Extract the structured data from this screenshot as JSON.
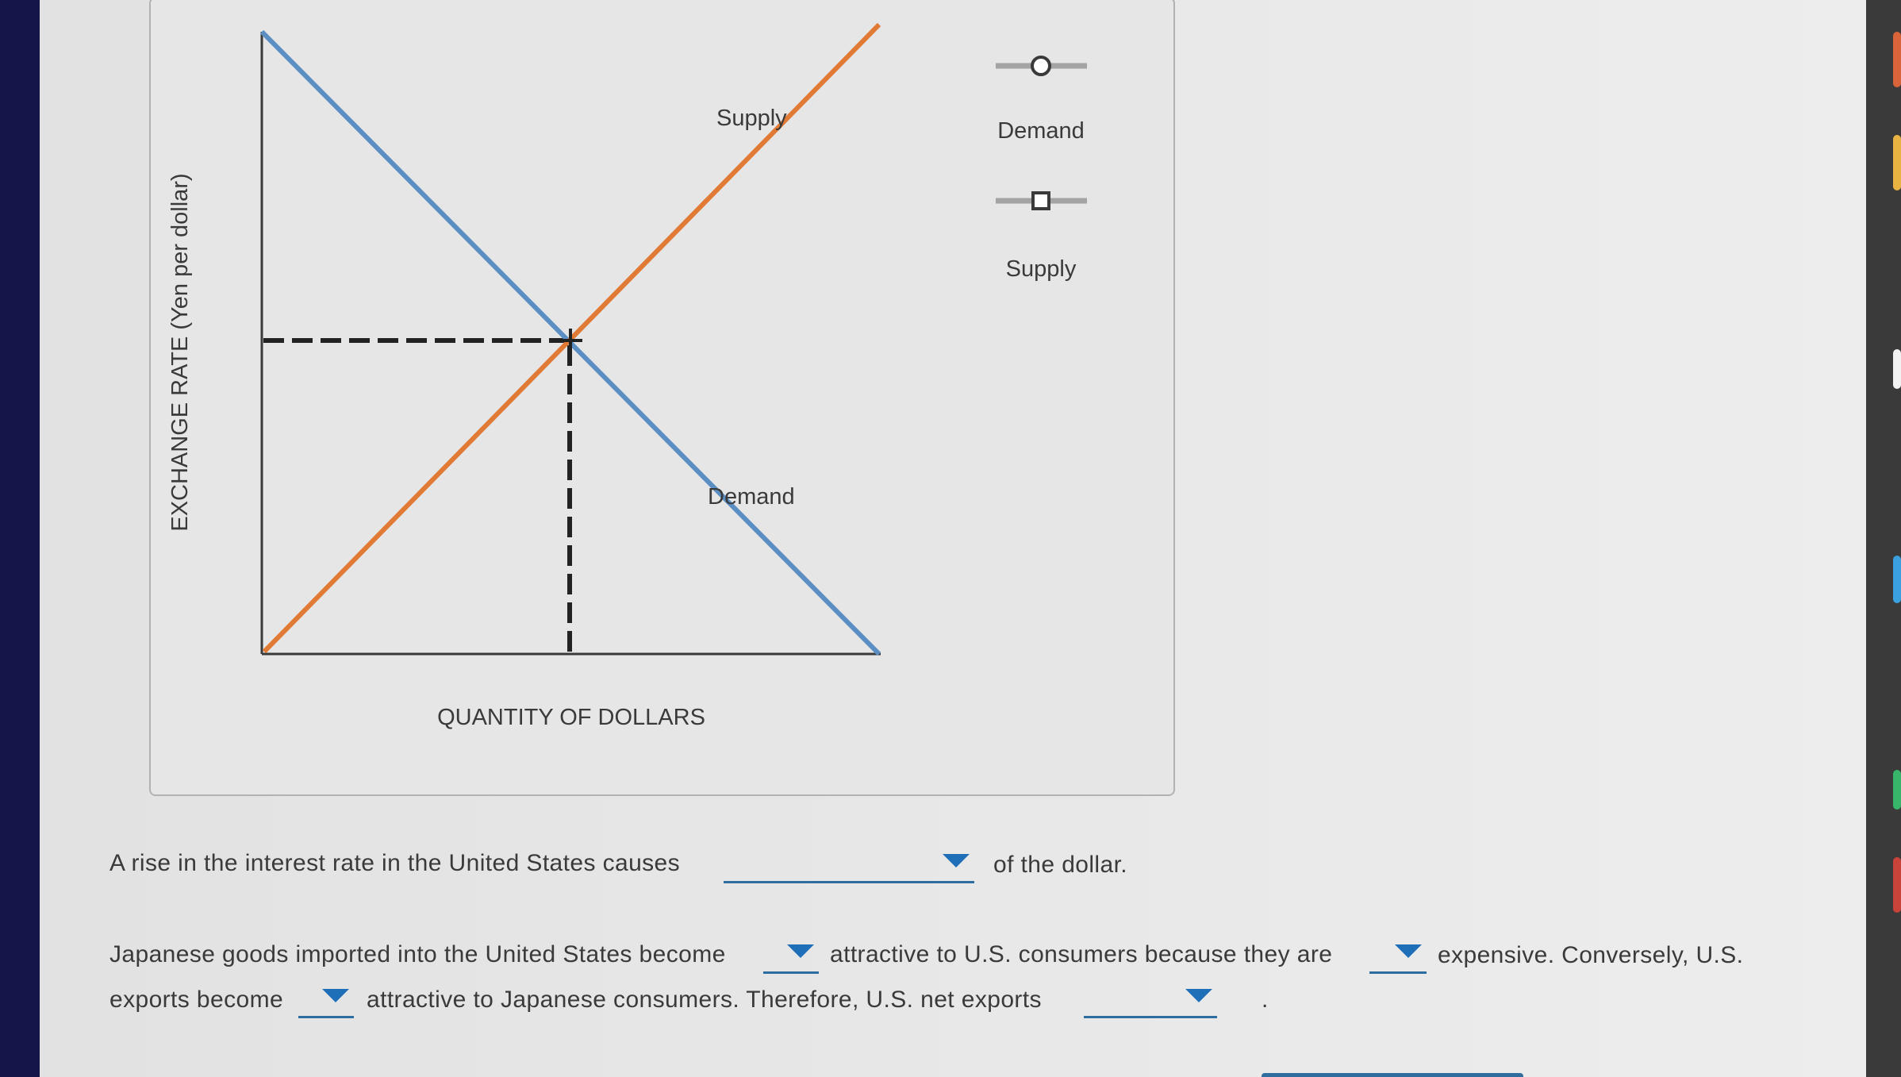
{
  "graph": {
    "y_axis_label": "EXCHANGE RATE (Yen per dollar)",
    "x_axis_label": "QUANTITY OF DOLLARS",
    "demand_curve_label": "Demand",
    "supply_curve_label": "Supply",
    "colors": {
      "demand": "#5b8ec3",
      "supply": "#e07a35",
      "axes": "#3a3a3a",
      "dashed": "#222222"
    }
  },
  "palette": {
    "title": "",
    "demand_tool_label": "Demand",
    "supply_tool_label": "Supply"
  },
  "question_1": {
    "before": "A rise in the interest rate in the United States causes",
    "after": "of the dollar.",
    "dropdown_value": ""
  },
  "question_2": {
    "part_a": "Japanese goods imported into the United States become",
    "part_b": "attractive to U.S. consumers because they are",
    "part_c": "expensive. Conversely, U.S.",
    "part_d": "exports become",
    "part_e": "attractive to Japanese consumers. Therefore, U.S. net exports",
    "part_f": ".",
    "dropdown_values": [
      "",
      "",
      "",
      ""
    ]
  }
}
